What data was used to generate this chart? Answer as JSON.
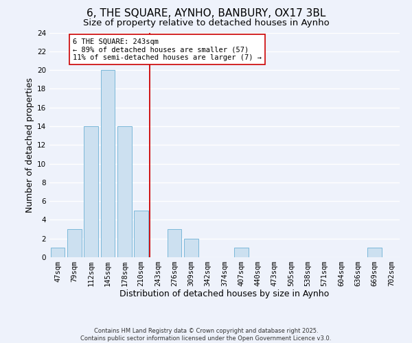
{
  "title": "6, THE SQUARE, AYNHO, BANBURY, OX17 3BL",
  "subtitle": "Size of property relative to detached houses in Aynho",
  "xlabel": "Distribution of detached houses by size in Aynho",
  "ylabel": "Number of detached properties",
  "bar_color": "#cce0f0",
  "bar_edge_color": "#7ab8d9",
  "background_color": "#eef2fb",
  "grid_color": "#ffffff",
  "bins": [
    "47sqm",
    "79sqm",
    "112sqm",
    "145sqm",
    "178sqm",
    "210sqm",
    "243sqm",
    "276sqm",
    "309sqm",
    "342sqm",
    "374sqm",
    "407sqm",
    "440sqm",
    "473sqm",
    "505sqm",
    "538sqm",
    "571sqm",
    "604sqm",
    "636sqm",
    "669sqm",
    "702sqm"
  ],
  "values": [
    1,
    3,
    14,
    20,
    14,
    5,
    0,
    3,
    2,
    0,
    0,
    1,
    0,
    0,
    0,
    0,
    0,
    0,
    0,
    1,
    0
  ],
  "subject_line_color": "#cc0000",
  "ylim": [
    0,
    24
  ],
  "yticks": [
    0,
    2,
    4,
    6,
    8,
    10,
    12,
    14,
    16,
    18,
    20,
    22,
    24
  ],
  "annotation_text": "6 THE SQUARE: 243sqm\n← 89% of detached houses are smaller (57)\n11% of semi-detached houses are larger (7) →",
  "annotation_box_color": "#ffffff",
  "annotation_box_edge": "#cc0000",
  "footer_text": "Contains HM Land Registry data © Crown copyright and database right 2025.\nContains public sector information licensed under the Open Government Licence v3.0.",
  "title_fontsize": 11,
  "subtitle_fontsize": 9.5,
  "xlabel_fontsize": 9,
  "ylabel_fontsize": 9,
  "tick_fontsize": 7.5,
  "annotation_fontsize": 7.5,
  "footer_fontsize": 6
}
